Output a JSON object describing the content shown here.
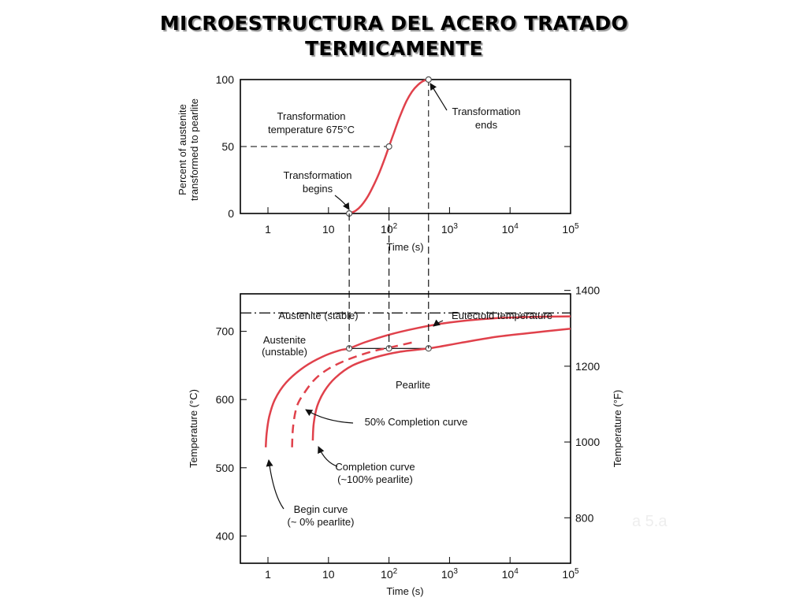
{
  "slide": {
    "title_line1": "MICROESTRUCTURA DEL ACERO TRATADO",
    "title_line2": "TERMICAMENTE",
    "caption_fragment": "a 5.a"
  },
  "colors": {
    "curve": "#e0414b",
    "axis": "#000000",
    "background": "#ffffff"
  },
  "chart_data": [
    {
      "type": "line",
      "id": "transformation",
      "x_scale": "log",
      "xlim": [
        0.35,
        100000
      ],
      "ylim": [
        0,
        100
      ],
      "xlabel": "Time (s)",
      "ylabel": [
        "Percent of austenite",
        "transformed to pearlite"
      ],
      "xticks": [
        {
          "value": 1,
          "base": "1",
          "exp": ""
        },
        {
          "value": 10,
          "base": "10",
          "exp": ""
        },
        {
          "value": 100,
          "base": "10",
          "exp": "2"
        },
        {
          "value": 1000,
          "base": "10",
          "exp": "3"
        },
        {
          "value": 10000,
          "base": "10",
          "exp": "4"
        },
        {
          "value": 100000,
          "base": "10",
          "exp": "5"
        }
      ],
      "yticks": [
        0,
        50,
        100
      ],
      "series": [
        {
          "x": [
            22,
            28,
            35,
            45,
            57,
            70,
            85,
            100,
            120,
            150,
            190,
            240,
            300,
            370,
            450
          ],
          "y": [
            0,
            2,
            6,
            13,
            22,
            31,
            41,
            50,
            60,
            72,
            83,
            91,
            96,
            99,
            100
          ]
        }
      ],
      "markers": [
        {
          "x": 22,
          "y": 0
        },
        {
          "x": 100,
          "y": 50
        },
        {
          "x": 450,
          "y": 100
        }
      ],
      "annotations": {
        "temperature": [
          "Transformation",
          "temperature 675°C"
        ],
        "begins": [
          "Transformation",
          "begins"
        ],
        "ends": [
          "Transformation",
          "ends"
        ]
      }
    },
    {
      "type": "line",
      "id": "ttt",
      "x_scale": "log",
      "xlim": [
        0.35,
        100000
      ],
      "ylim": [
        360,
        755
      ],
      "xlabel": "Time (s)",
      "ylabel": "Temperature (°C)",
      "ylabel_right": "Temperature (°F)",
      "xticks": [
        {
          "value": 1,
          "base": "1",
          "exp": ""
        },
        {
          "value": 10,
          "base": "10",
          "exp": ""
        },
        {
          "value": 100,
          "base": "10",
          "exp": "2"
        },
        {
          "value": 1000,
          "base": "10",
          "exp": "3"
        },
        {
          "value": 10000,
          "base": "10",
          "exp": "4"
        },
        {
          "value": 100000,
          "base": "10",
          "exp": "5"
        }
      ],
      "yticks": [
        400,
        500,
        600,
        700
      ],
      "yticks_right": [
        800,
        1000,
        1200,
        1400
      ],
      "eutectoid_temperature": 727,
      "isotherm": 675,
      "series": [
        {
          "name": "Begin curve",
          "style": "solid",
          "x": [
            0.92,
            0.95,
            1.05,
            1.3,
            2,
            4,
            8,
            15,
            22,
            40,
            100,
            300,
            1000,
            5000,
            20000,
            100000
          ],
          "y": [
            530,
            550,
            575,
            600,
            625,
            648,
            663,
            672,
            675,
            684,
            695,
            705,
            713,
            719,
            721,
            722
          ]
        },
        {
          "name": "50% Completion curve",
          "style": "dashed",
          "x": [
            2.5,
            2.6,
            3,
            4,
            6,
            10,
            20,
            50,
            100,
            250
          ],
          "y": [
            530,
            560,
            590,
            610,
            630,
            645,
            658,
            670,
            676,
            684
          ]
        },
        {
          "name": "Completion curve",
          "style": "solid",
          "x": [
            5.5,
            5.7,
            6.5,
            8.5,
            13,
            25,
            60,
            150,
            450,
            1500,
            6000,
            30000,
            100000
          ],
          "y": [
            540,
            565,
            590,
            612,
            632,
            650,
            662,
            670,
            675,
            683,
            692,
            699,
            704
          ]
        }
      ],
      "markers": [
        {
          "x": 22,
          "y": 675
        },
        {
          "x": 100,
          "y": 675
        },
        {
          "x": 450,
          "y": 675
        }
      ],
      "annotations": {
        "austenite_stable": "Austenite (stable)",
        "eutectoid": "Eutectoid temperature",
        "austenite_unstable": [
          "Austenite",
          "(unstable)"
        ],
        "pearlite": "Pearlite",
        "fifty": "50% Completion curve",
        "completion": [
          "Completion curve",
          "(~100% pearlite)"
        ],
        "begin": [
          "Begin curve",
          "(~ 0% pearlite)"
        ]
      }
    }
  ]
}
